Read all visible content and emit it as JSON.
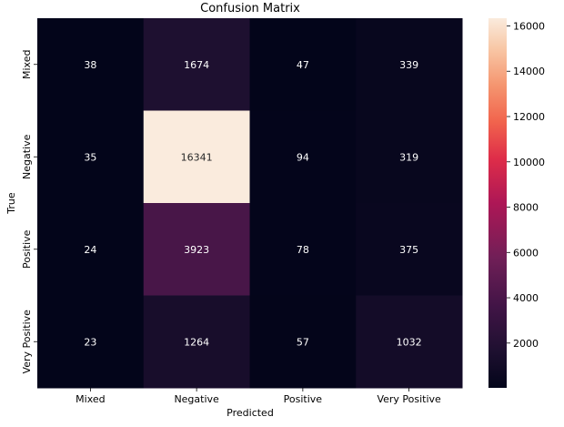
{
  "chart_data": {
    "type": "heatmap",
    "title": "Confusion Matrix",
    "xlabel": "Predicted",
    "ylabel": "True",
    "x_categories": [
      "Mixed",
      "Negative",
      "Positive",
      "Very Positive"
    ],
    "y_categories": [
      "Mixed",
      "Negative",
      "Positive",
      "Very Positive"
    ],
    "values": [
      [
        38,
        1674,
        47,
        339
      ],
      [
        35,
        16341,
        94,
        319
      ],
      [
        24,
        3923,
        78,
        375
      ],
      [
        23,
        1264,
        57,
        1032
      ]
    ],
    "colormap": "rocket",
    "colorbar": {
      "ticks": [
        2000,
        4000,
        6000,
        8000,
        10000,
        12000,
        14000,
        16000
      ],
      "range": [
        23,
        16341
      ]
    }
  }
}
